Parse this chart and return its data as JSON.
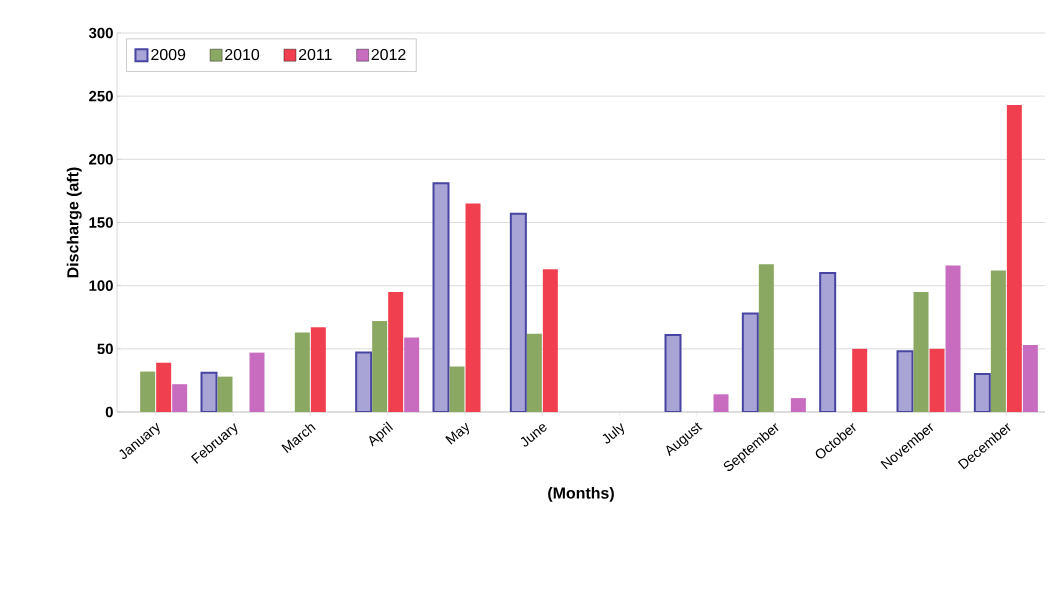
{
  "chart_data": {
    "type": "bar",
    "xlabel": "(Months)",
    "ylabel": "Discharge (aft)",
    "categories": [
      "January",
      "February",
      "March",
      "April",
      "May",
      "June",
      "July",
      "August",
      "September",
      "October",
      "November",
      "December"
    ],
    "series": [
      {
        "name": "2009",
        "color": "#a9a4d6",
        "values": [
          null,
          31,
          null,
          47,
          181,
          157,
          null,
          61,
          78,
          110,
          48,
          30
        ]
      },
      {
        "name": "2010",
        "color": "#8ba862",
        "values": [
          32,
          28,
          63,
          72,
          36,
          62,
          null,
          null,
          117,
          null,
          95,
          112
        ]
      },
      {
        "name": "2011",
        "color": "#f0404f",
        "values": [
          39,
          null,
          67,
          95,
          165,
          113,
          null,
          null,
          null,
          50,
          50,
          243
        ]
      },
      {
        "name": "2012",
        "color": "#c86cbf",
        "values": [
          22,
          47,
          null,
          59,
          null,
          null,
          null,
          14,
          11,
          null,
          116,
          53
        ]
      }
    ],
    "ylim": [
      0,
      300
    ],
    "yticks": [
      0,
      50,
      100,
      150,
      200,
      250,
      300
    ],
    "grid": "y",
    "legend": "top left"
  }
}
